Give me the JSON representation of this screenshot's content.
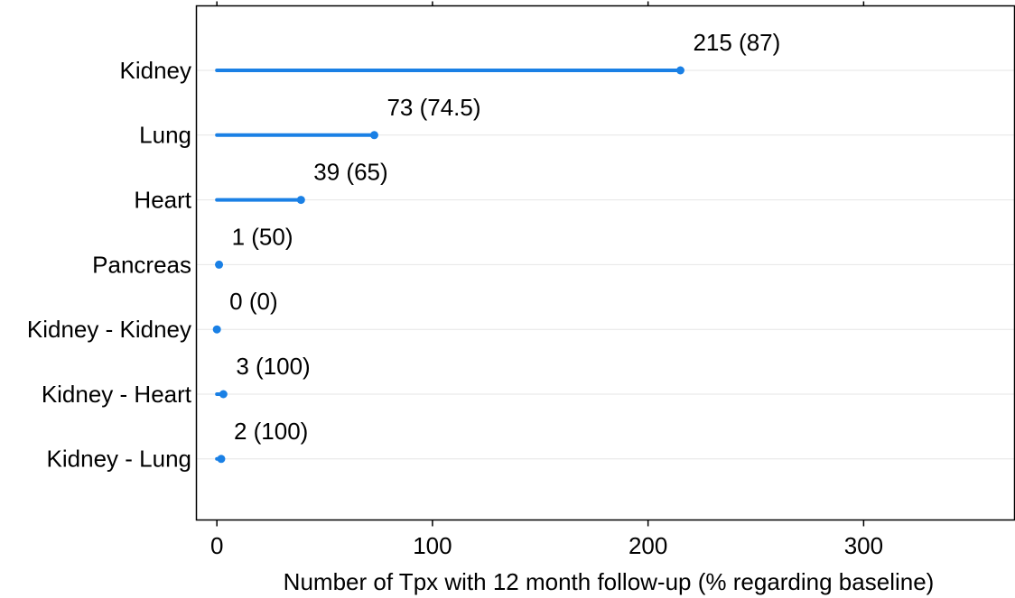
{
  "chart_data": {
    "type": "lollipop",
    "orientation": "horizontal",
    "title": "",
    "xlabel": "Number of Tpx with 12 month follow-up (% regarding baseline)",
    "ylabel": "",
    "xlim": [
      -9.5,
      370
    ],
    "xticks": [
      0,
      100,
      200,
      300
    ],
    "grid": "horizontal-only",
    "legend": "none",
    "colors": {
      "series": "#1a80e5",
      "grid": "#e6e6e6",
      "text": "#000000"
    },
    "categories": [
      "Kidney",
      "Lung",
      "Heart",
      "Pancreas",
      "Kidney - Kidney",
      "Kidney - Heart",
      "Kidney - Lung"
    ],
    "values": [
      215,
      73,
      39,
      1,
      0,
      3,
      2
    ],
    "labels": [
      "215 (87)",
      "73 (74.5)",
      "39 (65)",
      "1 (50)",
      "0 (0)",
      "3 (100)",
      "2 (100)"
    ]
  }
}
